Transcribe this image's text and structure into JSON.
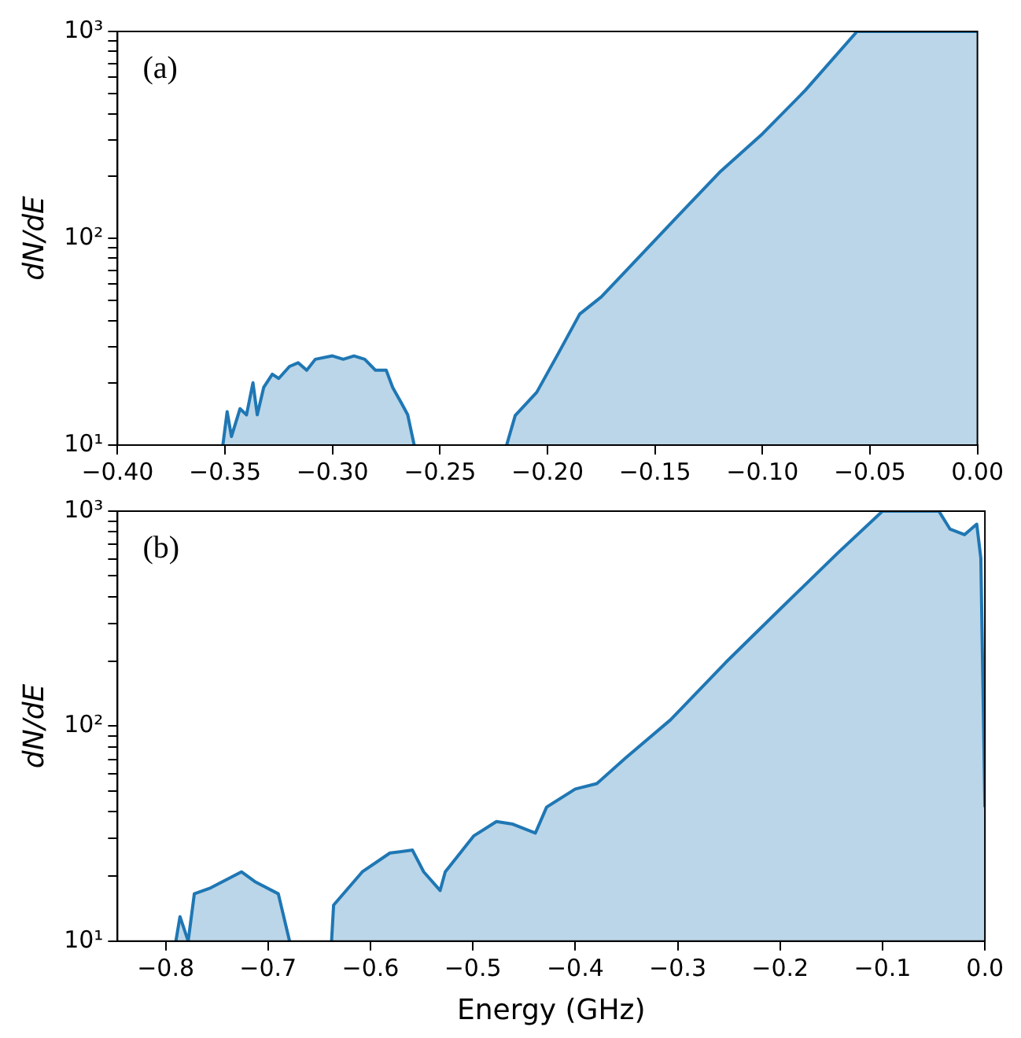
{
  "chart_data": [
    {
      "type": "area",
      "annotations": [
        "(a)"
      ],
      "ylabel": "dN/dE",
      "log": "y",
      "grid": false,
      "legend": false,
      "marker": "none",
      "line_style": "solid",
      "xlim": [
        -0.4,
        0
      ],
      "ylim": [
        10,
        1000
      ],
      "xticks": [
        {
          "value": -0.4,
          "label": "−0.40"
        },
        {
          "value": -0.35,
          "label": "−0.35"
        },
        {
          "value": -0.3,
          "label": "−0.30"
        },
        {
          "value": -0.25,
          "label": "−0.25"
        },
        {
          "value": -0.2,
          "label": "−0.20"
        },
        {
          "value": -0.15,
          "label": "−0.15"
        },
        {
          "value": -0.1,
          "label": "−0.10"
        },
        {
          "value": -0.05,
          "label": "−0.05"
        },
        {
          "value": 0,
          "label": "0.00"
        }
      ],
      "yticks": [
        {
          "value": 10,
          "label": "10¹"
        },
        {
          "value": 20,
          "label": null
        },
        {
          "value": 30,
          "label": null
        },
        {
          "value": 40,
          "label": null
        },
        {
          "value": 50,
          "label": null
        },
        {
          "value": 60,
          "label": null
        },
        {
          "value": 70,
          "label": null
        },
        {
          "value": 80,
          "label": null
        },
        {
          "value": 90,
          "label": null
        },
        {
          "value": 100,
          "label": "10²"
        },
        {
          "value": 200,
          "label": null
        },
        {
          "value": 300,
          "label": null
        },
        {
          "value": 400,
          "label": null
        },
        {
          "value": 500,
          "label": null
        },
        {
          "value": 600,
          "label": null
        },
        {
          "value": 700,
          "label": null
        },
        {
          "value": 800,
          "label": null
        },
        {
          "value": 900,
          "label": null
        },
        {
          "value": 1000,
          "label": "10³"
        }
      ],
      "series": [
        {
          "color": "#1f77b4",
          "x": [
            -0.351,
            -0.349,
            -0.347,
            -0.343,
            -0.34,
            -0.337,
            -0.335,
            -0.332,
            -0.328,
            -0.325,
            -0.32,
            -0.316,
            -0.312,
            -0.308,
            -0.3,
            -0.295,
            -0.29,
            -0.285,
            -0.28,
            -0.275,
            -0.272,
            -0.268,
            -0.265,
            -0.262,
            -0.24,
            -0.219,
            -0.215,
            -0.205,
            -0.195,
            -0.185,
            -0.175,
            -0.16,
            -0.14,
            -0.12,
            -0.1,
            -0.08,
            -0.056,
            -0.03,
            0
          ],
          "values": [
            10,
            14.5,
            11,
            15,
            14,
            20,
            14,
            19,
            22,
            21,
            24,
            25,
            23,
            26,
            27,
            26,
            27,
            26,
            23,
            23,
            19,
            16,
            14,
            10,
            null,
            10,
            13.9,
            18,
            27.7,
            43,
            52,
            76,
            126,
            208,
            320,
            520,
            1000,
            1000,
            1000
          ]
        }
      ]
    },
    {
      "type": "area",
      "annotations": [
        "(b)"
      ],
      "xlabel": "Energy (GHz)",
      "ylabel": "dN/dE",
      "log": "y",
      "grid": false,
      "legend": false,
      "marker": "none",
      "line_style": "solid",
      "xlim": [
        -0.847,
        0
      ],
      "ylim": [
        10,
        1000
      ],
      "xticks": [
        {
          "value": -0.8,
          "label": "−0.8"
        },
        {
          "value": -0.7,
          "label": "−0.7"
        },
        {
          "value": -0.6,
          "label": "−0.6"
        },
        {
          "value": -0.5,
          "label": "−0.5"
        },
        {
          "value": -0.4,
          "label": "−0.4"
        },
        {
          "value": -0.3,
          "label": "−0.3"
        },
        {
          "value": -0.2,
          "label": "−0.2"
        },
        {
          "value": -0.1,
          "label": "−0.1"
        },
        {
          "value": 0,
          "label": "0.0"
        }
      ],
      "yticks": [
        {
          "value": 10,
          "label": "10¹"
        },
        {
          "value": 20,
          "label": null
        },
        {
          "value": 30,
          "label": null
        },
        {
          "value": 40,
          "label": null
        },
        {
          "value": 50,
          "label": null
        },
        {
          "value": 60,
          "label": null
        },
        {
          "value": 70,
          "label": null
        },
        {
          "value": 80,
          "label": null
        },
        {
          "value": 90,
          "label": null
        },
        {
          "value": 100,
          "label": "10²"
        },
        {
          "value": 200,
          "label": null
        },
        {
          "value": 300,
          "label": null
        },
        {
          "value": 400,
          "label": null
        },
        {
          "value": 500,
          "label": null
        },
        {
          "value": 600,
          "label": null
        },
        {
          "value": 700,
          "label": null
        },
        {
          "value": 800,
          "label": null
        },
        {
          "value": 900,
          "label": null
        },
        {
          "value": 1000,
          "label": "10³"
        }
      ],
      "series": [
        {
          "color": "#1f77b4",
          "x": [
            -0.79,
            -0.786,
            -0.778,
            -0.772,
            -0.756,
            -0.726,
            -0.712,
            -0.69,
            -0.679,
            -0.66,
            -0.638,
            -0.636,
            -0.608,
            -0.581,
            -0.559,
            -0.548,
            -0.532,
            -0.527,
            -0.499,
            -0.477,
            -0.461,
            -0.439,
            -0.428,
            -0.4,
            -0.379,
            -0.351,
            -0.307,
            -0.253,
            -0.198,
            -0.143,
            -0.1,
            -0.045,
            -0.034,
            -0.02,
            -0.008,
            -0.004,
            0
          ],
          "values": [
            10,
            13,
            10,
            16.6,
            17.7,
            21,
            18.8,
            16.6,
            10,
            null,
            10,
            14.7,
            21,
            25.7,
            26.5,
            21,
            17.2,
            21,
            30.9,
            36,
            35,
            31.8,
            42,
            51,
            54,
            71,
            107,
            198,
            358,
            643,
            1000,
            1000,
            824,
            777,
            870,
            605,
            42
          ]
        }
      ]
    }
  ]
}
